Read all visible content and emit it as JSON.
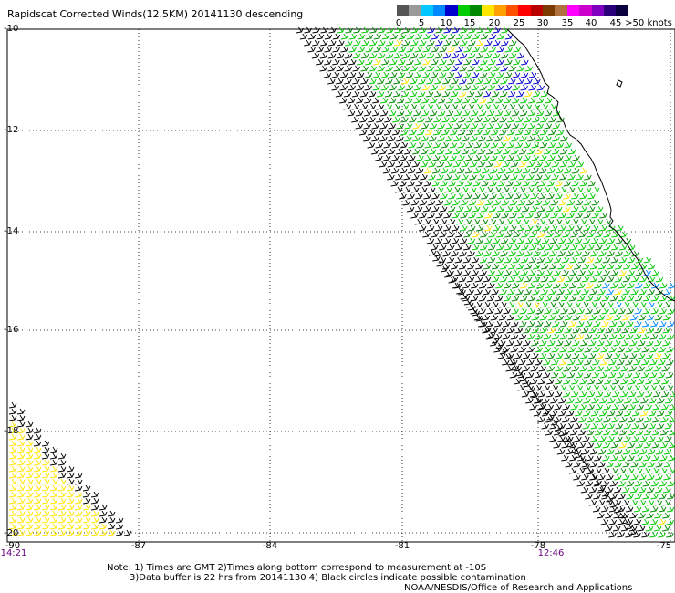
{
  "title": "Rapidscat Corrected Winds(12.5KM) 20141130 descending",
  "legend": {
    "colors": [
      "#555555",
      "#9a9a9a",
      "#00c8ff",
      "#0088ff",
      "#0000cc",
      "#00cc00",
      "#008800",
      "#ffe600",
      "#ffa000",
      "#ff5000",
      "#ff0000",
      "#bb0000",
      "#7a3a00",
      "#b07040",
      "#ff00ff",
      "#cc00cc",
      "#8000c0",
      "#2a007a",
      "#0a0040"
    ],
    "labels": [
      "0",
      "5",
      "10",
      "15",
      "20",
      "25",
      "30",
      "35",
      "40",
      "45",
      ">50 knots"
    ]
  },
  "axes": {
    "lat_labels": [
      "-10",
      "-12",
      "-14",
      "-16",
      "-18",
      "-20"
    ],
    "lon_labels": [
      "-90",
      "-87",
      "-84",
      "-81",
      "-78",
      "-75"
    ]
  },
  "times": {
    "left": "14:21",
    "right": "12:46"
  },
  "notes": {
    "line1": "Note: 1) Times are GMT 2)Times along bottom correspond to measurement at -10S",
    "line2": "3)Data buffer is 22 hrs from 20141130 4) Black circles indicate possible contamination",
    "credit": "NOAA/NESDIS/Office of Research and Applications"
  },
  "colors": {
    "grid": "#000000",
    "coast": "#000000",
    "time_label": "#6a0080"
  }
}
